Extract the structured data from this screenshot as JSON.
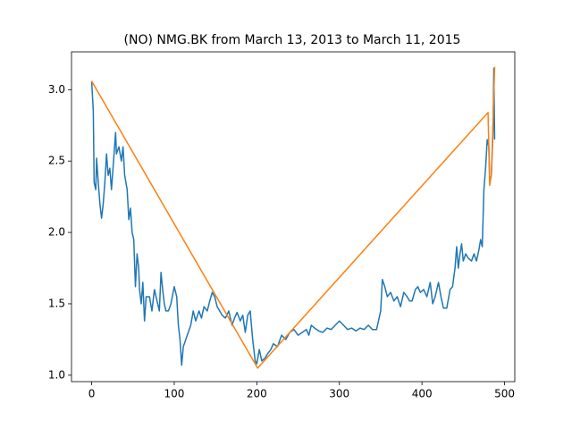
{
  "chart_data": {
    "type": "line",
    "title": "(NO) NMG.BK from March 13, 2013 to March 11, 2015",
    "xlim": [
      -24.4,
      512.4
    ],
    "ylim": [
      0.955,
      3.265
    ],
    "xticks": [
      0,
      100,
      200,
      300,
      400,
      500
    ],
    "yticks": [
      {
        "value": 1.0,
        "label": "1.0"
      },
      1.5,
      {
        "value": 2.0,
        "label": "2.0"
      },
      2.5,
      {
        "value": 3.0,
        "label": "3.0"
      }
    ],
    "grid": false,
    "series": [
      {
        "color": "#1f77b4",
        "x": [
          0,
          2,
          3,
          5,
          6,
          8,
          10,
          12,
          14,
          16,
          18,
          20,
          22,
          24,
          29,
          30,
          33,
          36,
          38,
          40,
          43,
          45,
          47,
          49,
          51,
          53,
          55,
          57,
          58,
          60,
          62,
          64,
          66,
          70,
          73,
          76,
          80,
          82,
          84,
          86,
          88,
          90,
          93,
          96,
          100,
          103,
          105,
          107,
          109,
          111,
          114,
          117,
          120,
          123,
          126,
          130,
          133,
          136,
          140,
          143,
          146,
          149,
          152,
          155,
          158,
          162,
          166,
          170,
          173,
          176,
          180,
          183,
          186,
          189,
          192,
          195,
          198,
          200,
          203,
          206,
          210,
          213,
          217,
          220,
          225,
          230,
          235,
          240,
          245,
          250,
          255,
          260,
          263,
          266,
          270,
          275,
          280,
          285,
          290,
          295,
          300,
          305,
          310,
          315,
          320,
          325,
          330,
          335,
          340,
          345,
          350,
          352,
          355,
          358,
          362,
          366,
          370,
          374,
          378,
          382,
          385,
          388,
          392,
          395,
          398,
          402,
          406,
          410,
          413,
          416,
          420,
          423,
          426,
          430,
          434,
          437,
          440,
          442,
          444,
          446,
          448,
          450,
          453,
          456,
          460,
          463,
          466,
          469,
          471,
          473,
          475,
          477,
          479,
          481,
          482,
          484,
          486,
          487,
          488
        ],
        "values": [
          3.06,
          2.85,
          2.35,
          2.3,
          2.52,
          2.35,
          2.2,
          2.1,
          2.2,
          2.35,
          2.55,
          2.4,
          2.45,
          2.3,
          2.7,
          2.55,
          2.6,
          2.5,
          2.6,
          2.4,
          2.3,
          2.09,
          2.17,
          2.0,
          1.95,
          1.62,
          1.85,
          1.75,
          1.6,
          1.5,
          1.65,
          1.38,
          1.55,
          1.55,
          1.45,
          1.6,
          1.5,
          1.45,
          1.72,
          1.6,
          1.5,
          1.45,
          1.45,
          1.5,
          1.62,
          1.55,
          1.35,
          1.25,
          1.07,
          1.2,
          1.25,
          1.3,
          1.35,
          1.45,
          1.38,
          1.45,
          1.4,
          1.48,
          1.45,
          1.52,
          1.58,
          1.55,
          1.48,
          1.45,
          1.42,
          1.4,
          1.45,
          1.35,
          1.4,
          1.44,
          1.38,
          1.42,
          1.3,
          1.42,
          1.45,
          1.25,
          1.1,
          1.08,
          1.18,
          1.1,
          1.12,
          1.15,
          1.18,
          1.22,
          1.2,
          1.28,
          1.25,
          1.3,
          1.32,
          1.28,
          1.3,
          1.32,
          1.28,
          1.35,
          1.33,
          1.31,
          1.3,
          1.33,
          1.32,
          1.35,
          1.38,
          1.35,
          1.32,
          1.33,
          1.31,
          1.33,
          1.32,
          1.35,
          1.32,
          1.32,
          1.45,
          1.67,
          1.62,
          1.55,
          1.58,
          1.52,
          1.55,
          1.48,
          1.58,
          1.55,
          1.52,
          1.52,
          1.6,
          1.62,
          1.58,
          1.6,
          1.55,
          1.65,
          1.5,
          1.55,
          1.65,
          1.55,
          1.47,
          1.47,
          1.6,
          1.62,
          1.75,
          1.9,
          1.75,
          1.85,
          1.92,
          1.8,
          1.85,
          1.82,
          1.8,
          1.85,
          1.8,
          1.88,
          1.95,
          1.9,
          2.3,
          2.45,
          2.65,
          2.6,
          2.35,
          2.4,
          2.7,
          3.15,
          2.65
        ]
      },
      {
        "color": "#ff7f0e",
        "x": [
          0,
          201,
          480,
          482,
          484,
          488
        ],
        "values": [
          3.06,
          1.05,
          2.84,
          2.33,
          2.4,
          3.16
        ]
      }
    ]
  }
}
